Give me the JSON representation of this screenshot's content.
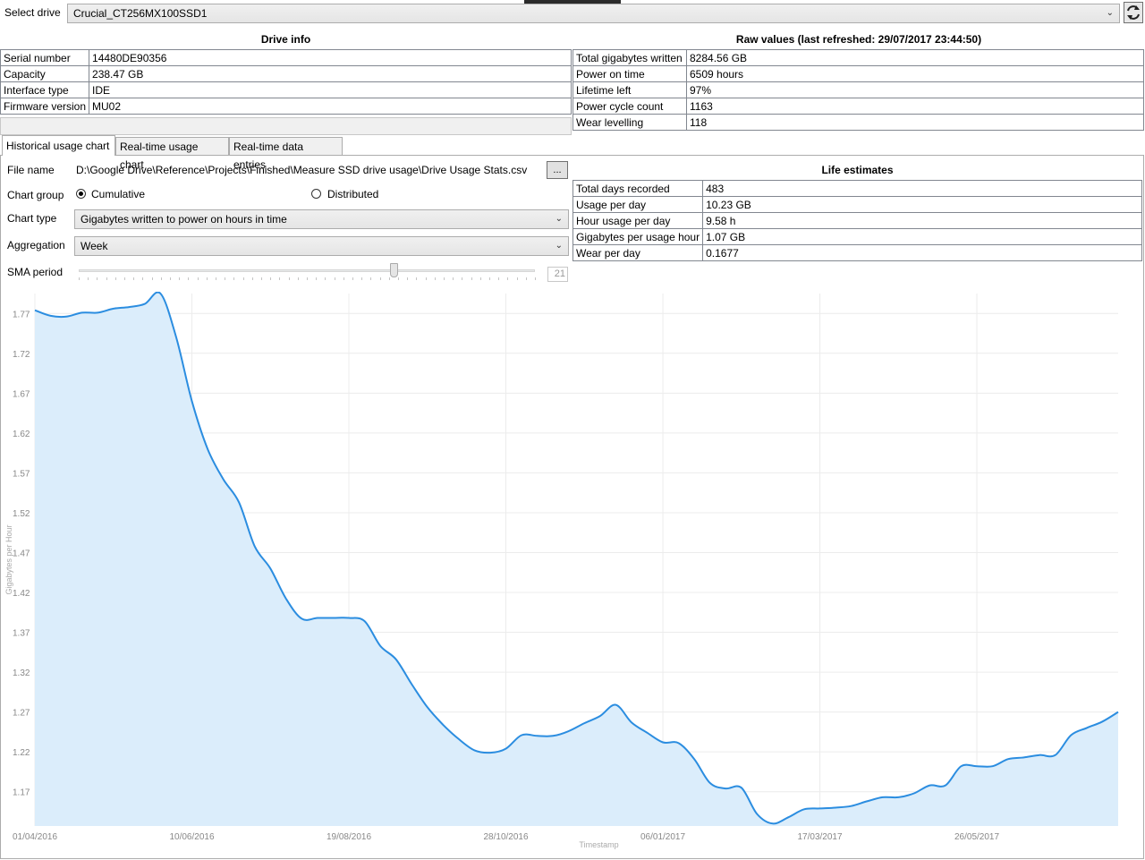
{
  "header": {
    "select_drive_label": "Select drive",
    "drive_selected": "Crucial_CT256MX100SSD1"
  },
  "drive_info": {
    "title": "Drive info",
    "rows": [
      {
        "label": "Serial number",
        "value": "14480DE90356"
      },
      {
        "label": "Capacity",
        "value": "238.47 GB"
      },
      {
        "label": "Interface type",
        "value": "IDE"
      },
      {
        "label": "Firmware version",
        "value": "MU02"
      }
    ]
  },
  "raw_values": {
    "title": "Raw values (last refreshed: 29/07/2017 23:44:50)",
    "rows": [
      {
        "label": "Total gigabytes written",
        "value": "8284.56 GB"
      },
      {
        "label": "Power on time",
        "value": "6509 hours"
      },
      {
        "label": "Lifetime left",
        "value": "97%"
      },
      {
        "label": "Power cycle count",
        "value": "1163"
      },
      {
        "label": "Wear levelling",
        "value": "118"
      }
    ]
  },
  "tabs": [
    {
      "label": "Historical usage chart"
    },
    {
      "label": "Real-time usage chart"
    },
    {
      "label": "Real-time data entries"
    }
  ],
  "settings": {
    "file_name_label": "File name",
    "file_name_value": "D:\\Google Drive\\Reference\\Projects\\Finished\\Measure SSD drive usage\\Drive Usage Stats.csv",
    "browse_label": "...",
    "chart_group_label": "Chart group",
    "cumulative_label": "Cumulative",
    "distributed_label": "Distributed",
    "chart_type_label": "Chart type",
    "chart_type_value": "Gigabytes written to power on hours in time",
    "aggregation_label": "Aggregation",
    "aggregation_value": "Week",
    "sma_label": "SMA period",
    "sma_value": "21",
    "sma_fraction": 0.69
  },
  "life_estimates": {
    "title": "Life estimates",
    "rows": [
      {
        "label": "Total days recorded",
        "value": "483"
      },
      {
        "label": "Usage per day",
        "value": "10.23 GB"
      },
      {
        "label": "Hour usage per day",
        "value": "9.58 h"
      },
      {
        "label": "Gigabytes per usage hour",
        "value": "1.07 GB"
      },
      {
        "label": "Wear per day",
        "value": "0.1677"
      }
    ]
  },
  "colors": {
    "line": "#2b8de0",
    "fill": "#dbedfb",
    "grid": "#ececec",
    "axis_text": "#888888"
  },
  "chart_data": {
    "type": "area",
    "title": "",
    "xlabel": "Timestamp",
    "ylabel": "Gigabytes per Hour",
    "x_ticks": [
      "01/04/2016",
      "10/06/2016",
      "19/08/2016",
      "28/10/2016",
      "06/01/2017",
      "17/03/2017",
      "26/05/2017"
    ],
    "y_ticks": [
      "1.77",
      "1.72",
      "1.67",
      "1.62",
      "1.57",
      "1.52",
      "1.47",
      "1.42",
      "1.37",
      "1.32",
      "1.27",
      "1.22",
      "1.17"
    ],
    "ylim": [
      1.127,
      1.795
    ],
    "x_range_weeks": [
      0,
      69
    ],
    "points": [
      [
        0,
        1.774
      ],
      [
        1,
        1.767
      ],
      [
        2,
        1.766
      ],
      [
        3,
        1.771
      ],
      [
        4,
        1.771
      ],
      [
        5,
        1.776
      ],
      [
        6,
        1.778
      ],
      [
        7,
        1.782
      ],
      [
        8,
        1.795
      ],
      [
        9,
        1.74
      ],
      [
        10,
        1.66
      ],
      [
        11,
        1.6
      ],
      [
        12,
        1.562
      ],
      [
        13,
        1.533
      ],
      [
        14,
        1.478
      ],
      [
        15,
        1.45
      ],
      [
        16,
        1.412
      ],
      [
        17,
        1.387
      ],
      [
        18,
        1.388
      ],
      [
        19,
        1.388
      ],
      [
        20,
        1.388
      ],
      [
        21,
        1.384
      ],
      [
        22,
        1.353
      ],
      [
        23,
        1.336
      ],
      [
        24,
        1.305
      ],
      [
        25,
        1.276
      ],
      [
        26,
        1.254
      ],
      [
        27,
        1.236
      ],
      [
        28,
        1.222
      ],
      [
        29,
        1.219
      ],
      [
        30,
        1.224
      ],
      [
        31,
        1.241
      ],
      [
        32,
        1.24
      ],
      [
        33,
        1.24
      ],
      [
        34,
        1.246
      ],
      [
        35,
        1.256
      ],
      [
        36,
        1.265
      ],
      [
        37,
        1.279
      ],
      [
        38,
        1.257
      ],
      [
        39,
        1.244
      ],
      [
        40,
        1.232
      ],
      [
        41,
        1.231
      ],
      [
        42,
        1.211
      ],
      [
        43,
        1.181
      ],
      [
        44,
        1.174
      ],
      [
        45,
        1.175
      ],
      [
        46,
        1.142
      ],
      [
        47,
        1.13
      ],
      [
        48,
        1.138
      ],
      [
        49,
        1.148
      ],
      [
        50,
        1.149
      ],
      [
        51,
        1.15
      ],
      [
        52,
        1.152
      ],
      [
        53,
        1.158
      ],
      [
        54,
        1.163
      ],
      [
        55,
        1.163
      ],
      [
        56,
        1.168
      ],
      [
        57,
        1.178
      ],
      [
        58,
        1.178
      ],
      [
        59,
        1.202
      ],
      [
        60,
        1.202
      ],
      [
        61,
        1.202
      ],
      [
        62,
        1.211
      ],
      [
        63,
        1.213
      ],
      [
        64,
        1.216
      ],
      [
        65,
        1.216
      ],
      [
        66,
        1.241
      ],
      [
        67,
        1.25
      ],
      [
        68,
        1.258
      ],
      [
        69,
        1.27
      ]
    ]
  }
}
